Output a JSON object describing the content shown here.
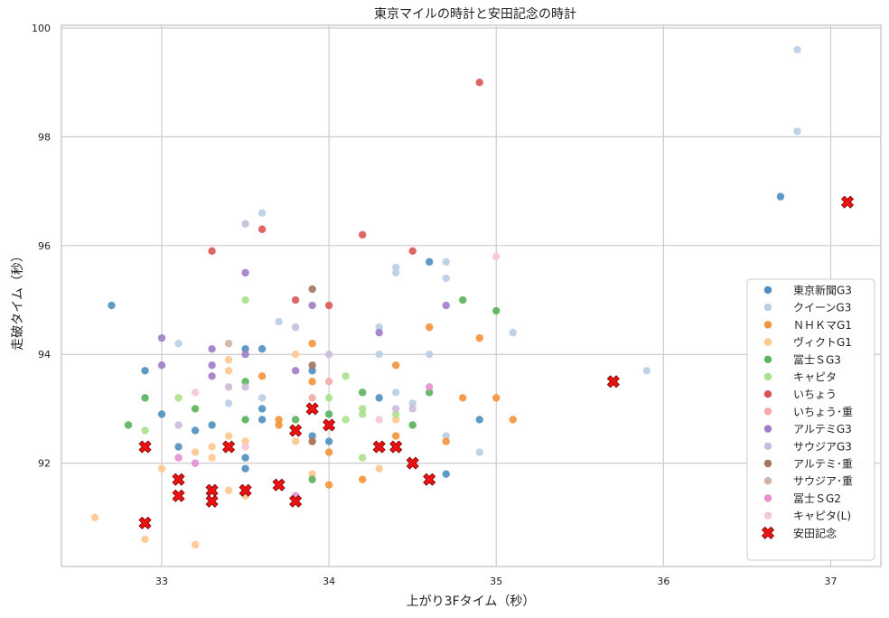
{
  "chart_data": {
    "type": "scatter",
    "title": "東京マイルの時計と安田記念の時計",
    "xlabel": "上がり3Fタイム（秒）",
    "ylabel": "走破タイム（秒）",
    "xlim": [
      32.4,
      37.3
    ],
    "ylim": [
      90.1,
      100.05
    ],
    "xticks": [
      "33",
      "34",
      "35",
      "36",
      "37"
    ],
    "yticks": [
      "92",
      "94",
      "96",
      "98",
      "100"
    ],
    "grid": true,
    "legend_position": "lower-right",
    "series": [
      {
        "name": "東京新聞G3",
        "color": "#4e8fbf",
        "marker": "circle",
        "points": [
          [
            32.7,
            94.9
          ],
          [
            32.9,
            93.7
          ],
          [
            33.0,
            92.9
          ],
          [
            33.1,
            92.3
          ],
          [
            33.2,
            92.6
          ],
          [
            33.3,
            92.7
          ],
          [
            33.5,
            94.1
          ],
          [
            33.5,
            92.1
          ],
          [
            33.5,
            91.9
          ],
          [
            33.6,
            94.1
          ],
          [
            33.6,
            93.0
          ],
          [
            33.6,
            92.8
          ],
          [
            33.9,
            93.7
          ],
          [
            33.9,
            92.5
          ],
          [
            34.0,
            92.4
          ],
          [
            34.3,
            93.2
          ],
          [
            34.6,
            95.7
          ],
          [
            34.7,
            91.8
          ],
          [
            34.9,
            92.8
          ],
          [
            36.7,
            96.9
          ]
        ]
      },
      {
        "name": "クイーンG3",
        "color": "#b9cde6",
        "marker": "circle",
        "points": [
          [
            33.1,
            94.2
          ],
          [
            33.4,
            93.1
          ],
          [
            33.6,
            96.6
          ],
          [
            33.6,
            93.2
          ],
          [
            33.7,
            94.6
          ],
          [
            34.0,
            92.7
          ],
          [
            34.3,
            94.5
          ],
          [
            34.3,
            94.0
          ],
          [
            34.4,
            95.6
          ],
          [
            34.4,
            95.5
          ],
          [
            34.4,
            93.3
          ],
          [
            34.5,
            93.1
          ],
          [
            34.6,
            94.0
          ],
          [
            34.7,
            95.7
          ],
          [
            34.7,
            95.4
          ],
          [
            34.7,
            92.5
          ],
          [
            34.9,
            92.2
          ],
          [
            35.1,
            94.4
          ],
          [
            35.9,
            93.7
          ],
          [
            36.8,
            98.1
          ],
          [
            36.8,
            99.6
          ]
        ]
      },
      {
        "name": "ＮＨＫマG1",
        "color": "#f5923a",
        "marker": "circle",
        "points": [
          [
            33.6,
            93.6
          ],
          [
            33.7,
            92.8
          ],
          [
            33.7,
            92.7
          ],
          [
            33.9,
            94.2
          ],
          [
            33.9,
            93.5
          ],
          [
            33.9,
            92.4
          ],
          [
            34.0,
            92.2
          ],
          [
            34.0,
            91.6
          ],
          [
            34.2,
            91.7
          ],
          [
            34.4,
            93.8
          ],
          [
            34.4,
            92.5
          ],
          [
            34.6,
            94.5
          ],
          [
            34.7,
            92.4
          ],
          [
            34.8,
            93.2
          ],
          [
            34.9,
            94.3
          ],
          [
            35.0,
            93.2
          ],
          [
            35.1,
            92.8
          ]
        ]
      },
      {
        "name": "ヴィクトG1",
        "color": "#ffc78f",
        "marker": "circle",
        "points": [
          [
            32.6,
            91.0
          ],
          [
            32.9,
            90.6
          ],
          [
            33.0,
            91.9
          ],
          [
            33.2,
            92.2
          ],
          [
            33.2,
            90.5
          ],
          [
            33.3,
            92.3
          ],
          [
            33.3,
            92.1
          ],
          [
            33.4,
            93.9
          ],
          [
            33.4,
            93.7
          ],
          [
            33.4,
            92.5
          ],
          [
            33.4,
            91.5
          ],
          [
            33.5,
            92.4
          ],
          [
            33.5,
            91.4
          ],
          [
            33.8,
            94.0
          ],
          [
            33.8,
            92.4
          ],
          [
            33.9,
            91.8
          ],
          [
            34.3,
            91.9
          ],
          [
            34.4,
            92.8
          ]
        ]
      },
      {
        "name": "冨士ＳG3",
        "color": "#58b35a",
        "marker": "circle",
        "points": [
          [
            32.8,
            92.7
          ],
          [
            32.9,
            93.2
          ],
          [
            33.2,
            93.0
          ],
          [
            33.5,
            93.5
          ],
          [
            33.5,
            92.8
          ],
          [
            33.8,
            92.8
          ],
          [
            33.9,
            91.7
          ],
          [
            34.0,
            92.9
          ],
          [
            34.2,
            93.3
          ],
          [
            34.5,
            92.7
          ],
          [
            34.6,
            93.3
          ],
          [
            34.8,
            95.0
          ],
          [
            35.0,
            94.8
          ]
        ]
      },
      {
        "name": "キャピタ",
        "color": "#aae08c",
        "marker": "circle",
        "points": [
          [
            32.9,
            92.6
          ],
          [
            33.1,
            93.2
          ],
          [
            33.5,
            95.0
          ],
          [
            34.0,
            93.2
          ],
          [
            34.1,
            93.6
          ],
          [
            34.1,
            92.8
          ],
          [
            34.2,
            93.0
          ],
          [
            34.2,
            92.9
          ],
          [
            34.2,
            92.1
          ],
          [
            34.4,
            92.9
          ]
        ]
      },
      {
        "name": "いちょう",
        "color": "#d95555",
        "marker": "circle",
        "points": [
          [
            33.3,
            95.9
          ],
          [
            33.6,
            96.3
          ],
          [
            33.8,
            95.0
          ],
          [
            34.0,
            94.9
          ],
          [
            34.2,
            96.2
          ],
          [
            34.5,
            95.9
          ],
          [
            34.9,
            99.0
          ]
        ]
      },
      {
        "name": "いちょう･重",
        "color": "#f5a8a8",
        "marker": "circle",
        "points": [
          [
            33.9,
            93.2
          ],
          [
            34.0,
            93.5
          ]
        ]
      },
      {
        "name": "アルテミG3",
        "color": "#a07cc5",
        "marker": "circle",
        "points": [
          [
            33.0,
            94.3
          ],
          [
            33.0,
            93.8
          ],
          [
            33.3,
            94.1
          ],
          [
            33.3,
            93.8
          ],
          [
            33.3,
            93.6
          ],
          [
            33.5,
            95.5
          ],
          [
            33.5,
            94.0
          ],
          [
            33.8,
            93.7
          ],
          [
            33.9,
            94.9
          ],
          [
            34.3,
            94.4
          ],
          [
            34.7,
            94.9
          ]
        ]
      },
      {
        "name": "サウジアG3",
        "color": "#cbbad8",
        "marker": "circle",
        "points": [
          [
            33.1,
            92.7
          ],
          [
            33.4,
            93.4
          ],
          [
            33.5,
            96.4
          ],
          [
            33.5,
            93.4
          ],
          [
            33.8,
            94.5
          ],
          [
            34.0,
            94.0
          ],
          [
            34.4,
            93.0
          ],
          [
            34.5,
            93.0
          ]
        ]
      },
      {
        "name": "アルテミ･重",
        "color": "#a57462",
        "marker": "circle",
        "points": [
          [
            33.9,
            95.2
          ],
          [
            33.9,
            93.8
          ],
          [
            33.9,
            92.4
          ]
        ]
      },
      {
        "name": "サウジア･重",
        "color": "#cdb3a6",
        "marker": "circle",
        "points": [
          [
            33.4,
            94.2
          ]
        ]
      },
      {
        "name": "冨士ＳG2",
        "color": "#e58fcf",
        "marker": "circle",
        "points": [
          [
            33.1,
            92.1
          ],
          [
            33.2,
            92.0
          ],
          [
            33.8,
            91.4
          ],
          [
            34.6,
            93.4
          ]
        ]
      },
      {
        "name": "キャピタ(L)",
        "color": "#f6c6d6",
        "marker": "circle",
        "points": [
          [
            33.2,
            93.3
          ],
          [
            33.5,
            92.3
          ],
          [
            34.3,
            92.8
          ],
          [
            35.0,
            95.8
          ]
        ]
      },
      {
        "name": "安田記念",
        "color": "#ee1111",
        "marker": "x",
        "points": [
          [
            32.9,
            92.3
          ],
          [
            32.9,
            90.9
          ],
          [
            33.1,
            91.7
          ],
          [
            33.1,
            91.4
          ],
          [
            33.3,
            91.5
          ],
          [
            33.3,
            91.3
          ],
          [
            33.4,
            92.3
          ],
          [
            33.5,
            91.5
          ],
          [
            33.7,
            91.6
          ],
          [
            33.8,
            92.6
          ],
          [
            33.8,
            91.3
          ],
          [
            33.9,
            93.0
          ],
          [
            34.0,
            92.7
          ],
          [
            34.3,
            92.3
          ],
          [
            34.4,
            92.3
          ],
          [
            34.5,
            92.0
          ],
          [
            34.6,
            91.7
          ],
          [
            35.7,
            93.5
          ],
          [
            37.1,
            96.8
          ]
        ]
      }
    ]
  }
}
